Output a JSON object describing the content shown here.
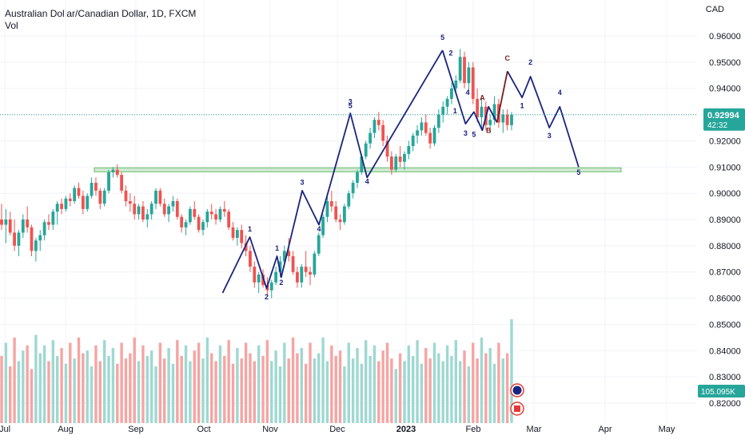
{
  "header": {
    "title": "Australian Dollar/Canadian Dollar, 1D, FXCM",
    "volume_label": "Vol",
    "currency": "CAD"
  },
  "price_axis": {
    "ticks": [
      "0.96000",
      "0.95000",
      "0.94000",
      "0.93000",
      "0.92000",
      "0.91000",
      "0.90000",
      "0.89000",
      "0.88000",
      "0.87000",
      "0.86000",
      "0.85000",
      "0.84000",
      "0.83000",
      "0.82000"
    ],
    "tick_values": [
      0.96,
      0.95,
      0.94,
      0.93,
      0.92,
      0.91,
      0.9,
      0.89,
      0.88,
      0.87,
      0.86,
      0.85,
      0.84,
      0.83,
      0.82
    ],
    "current_price": "0.92994",
    "current_price_value": 0.92994,
    "countdown": "42:32",
    "volume_badge": "105.095K"
  },
  "time_axis": {
    "labels": [
      "Jul",
      "Aug",
      "Sep",
      "Oct",
      "Nov",
      "Dec",
      "2023",
      "Feb",
      "Mar",
      "Apr",
      "May"
    ],
    "bold_label": "2023"
  },
  "colors": {
    "bull": "#26a69a",
    "bear": "#ef5350",
    "vol_bull": "#9fd8d1",
    "vol_bear": "#f5a5a3",
    "wave": "#1a237e",
    "projection": "#7b1c1c",
    "zone_fill": "#c8e6c9",
    "zone_stroke": "#66bb6a",
    "price_badge": "#26a69a",
    "last_price_line": "#26a69a"
  },
  "chart_data": {
    "type": "candlestick",
    "symbol": "Australian Dollar/Canadian Dollar",
    "interval": "1D",
    "ylim": [
      0.815,
      0.9655
    ],
    "support_zone": [
      0.9082,
      0.9097
    ],
    "wave_path": [
      [
        "2022-10-13",
        0.862
      ],
      [
        "2022-10-26",
        0.8833
      ],
      [
        "2022-11-03",
        0.8638
      ],
      [
        "2022-11-08",
        0.876
      ],
      [
        "2022-11-10",
        0.868
      ],
      [
        "2022-11-20",
        0.901
      ],
      [
        "2022-11-28",
        0.888
      ],
      [
        "2022-12-13",
        0.9305
      ],
      [
        "2022-12-21",
        0.906
      ],
      [
        "2023-01-26",
        0.9545
      ]
    ],
    "correction_path": [
      [
        "2023-01-26",
        0.9545
      ],
      [
        "2023-02-06",
        0.9265
      ],
      [
        "2023-02-10",
        0.931
      ],
      [
        "2023-02-14",
        0.924
      ],
      [
        "2023-02-17",
        0.933
      ],
      [
        "2023-02-21",
        0.927
      ]
    ],
    "projection_path": [
      [
        "2023-02-21",
        0.927
      ],
      [
        "2023-02-26",
        0.9465
      ]
    ],
    "forecast_path": [
      [
        "2023-02-26",
        0.9465
      ],
      [
        "2023-03-05",
        0.9365
      ],
      [
        "2023-03-09",
        0.9445
      ],
      [
        "2023-03-18",
        0.925
      ],
      [
        "2023-03-23",
        0.933
      ],
      [
        "2023-04-01",
        0.91
      ]
    ],
    "wave_labels": [
      {
        "text": "1",
        "date": "2022-10-26",
        "price": 0.8855
      },
      {
        "text": "2",
        "date": "2022-11-03",
        "price": 0.8595
      },
      {
        "text": "1",
        "date": "2022-11-08",
        "price": 0.8782
      },
      {
        "text": "2",
        "date": "2022-11-10",
        "price": 0.865
      },
      {
        "text": "3",
        "date": "2022-11-20",
        "price": 0.9032
      },
      {
        "text": "4",
        "date": "2022-11-28",
        "price": 0.8855
      },
      {
        "text": "3",
        "date": "2022-12-13",
        "price": 0.934
      },
      {
        "text": "5",
        "date": "2022-12-13",
        "price": 0.9325
      },
      {
        "text": "4",
        "date": "2022-12-21",
        "price": 0.9035
      },
      {
        "text": "5",
        "date": "2023-01-26",
        "price": 0.9585
      },
      {
        "text": "2",
        "date": "2023-01-30",
        "price": 0.9525
      },
      {
        "text": "1",
        "date": "2023-02-01",
        "price": 0.9305
      },
      {
        "text": "4",
        "date": "2023-02-07",
        "price": 0.9375
      },
      {
        "text": "3",
        "date": "2023-02-06",
        "price": 0.922
      },
      {
        "text": "5",
        "date": "2023-02-10",
        "price": 0.9215
      },
      {
        "text": "A",
        "date": "2023-02-14",
        "price": 0.9355
      },
      {
        "text": "B",
        "date": "2023-02-17",
        "price": 0.923
      },
      {
        "text": "C",
        "date": "2023-02-26",
        "price": 0.9505
      },
      {
        "text": "2",
        "date": "2023-03-09",
        "price": 0.949
      },
      {
        "text": "1",
        "date": "2023-03-05",
        "price": 0.9325
      },
      {
        "text": "4",
        "date": "2023-03-23",
        "price": 0.9375
      },
      {
        "text": "3",
        "date": "2023-03-18",
        "price": 0.921
      },
      {
        "text": "5",
        "date": "2023-04-01",
        "price": 0.907
      }
    ],
    "candles_ohlc": [
      [
        0.89,
        0.896,
        0.886,
        0.888
      ],
      [
        0.888,
        0.894,
        0.881,
        0.89
      ],
      [
        0.89,
        0.893,
        0.884,
        0.885
      ],
      [
        0.885,
        0.89,
        0.878,
        0.88
      ],
      [
        0.88,
        0.886,
        0.876,
        0.885
      ],
      [
        0.885,
        0.892,
        0.883,
        0.89
      ],
      [
        0.89,
        0.895,
        0.885,
        0.887
      ],
      [
        0.887,
        0.888,
        0.876,
        0.878
      ],
      [
        0.878,
        0.883,
        0.874,
        0.882
      ],
      [
        0.882,
        0.886,
        0.878,
        0.884
      ],
      [
        0.884,
        0.89,
        0.882,
        0.889
      ],
      [
        0.889,
        0.892,
        0.886,
        0.888
      ],
      [
        0.888,
        0.894,
        0.886,
        0.893
      ],
      [
        0.893,
        0.897,
        0.888,
        0.896
      ],
      [
        0.896,
        0.898,
        0.892,
        0.894
      ],
      [
        0.894,
        0.899,
        0.893,
        0.898
      ],
      [
        0.898,
        0.9,
        0.895,
        0.897
      ],
      [
        0.897,
        0.903,
        0.896,
        0.902
      ],
      [
        0.902,
        0.904,
        0.898,
        0.899
      ],
      [
        0.899,
        0.901,
        0.892,
        0.894
      ],
      [
        0.894,
        0.9,
        0.893,
        0.899
      ],
      [
        0.899,
        0.906,
        0.898,
        0.904
      ],
      [
        0.904,
        0.906,
        0.899,
        0.901
      ],
      [
        0.901,
        0.902,
        0.894,
        0.896
      ],
      [
        0.896,
        0.902,
        0.895,
        0.901
      ],
      [
        0.901,
        0.909,
        0.9,
        0.908
      ],
      [
        0.908,
        0.91,
        0.906,
        0.909
      ],
      [
        0.909,
        0.911,
        0.906,
        0.907
      ],
      [
        0.907,
        0.908,
        0.9,
        0.901
      ],
      [
        0.901,
        0.903,
        0.895,
        0.897
      ],
      [
        0.897,
        0.9,
        0.893,
        0.896
      ],
      [
        0.896,
        0.899,
        0.89,
        0.892
      ],
      [
        0.892,
        0.896,
        0.89,
        0.895
      ],
      [
        0.895,
        0.897,
        0.889,
        0.89
      ],
      [
        0.89,
        0.894,
        0.887,
        0.892
      ],
      [
        0.892,
        0.897,
        0.89,
        0.896
      ],
      [
        0.896,
        0.902,
        0.894,
        0.901
      ],
      [
        0.901,
        0.902,
        0.895,
        0.896
      ],
      [
        0.896,
        0.898,
        0.891,
        0.892
      ],
      [
        0.892,
        0.896,
        0.889,
        0.895
      ],
      [
        0.895,
        0.899,
        0.893,
        0.897
      ],
      [
        0.897,
        0.898,
        0.89,
        0.891
      ],
      [
        0.891,
        0.892,
        0.885,
        0.887
      ],
      [
        0.887,
        0.89,
        0.884,
        0.889
      ],
      [
        0.889,
        0.895,
        0.888,
        0.894
      ],
      [
        0.894,
        0.897,
        0.89,
        0.891
      ],
      [
        0.891,
        0.892,
        0.885,
        0.886
      ],
      [
        0.886,
        0.89,
        0.884,
        0.889
      ],
      [
        0.889,
        0.894,
        0.887,
        0.893
      ],
      [
        0.893,
        0.896,
        0.89,
        0.892
      ],
      [
        0.892,
        0.894,
        0.888,
        0.89
      ],
      [
        0.89,
        0.895,
        0.889,
        0.894
      ],
      [
        0.894,
        0.897,
        0.891,
        0.893
      ],
      [
        0.893,
        0.894,
        0.886,
        0.887
      ],
      [
        0.887,
        0.889,
        0.882,
        0.883
      ],
      [
        0.883,
        0.887,
        0.88,
        0.886
      ],
      [
        0.886,
        0.888,
        0.879,
        0.881
      ],
      [
        0.881,
        0.884,
        0.876,
        0.878
      ],
      [
        0.878,
        0.88,
        0.87,
        0.872
      ],
      [
        0.872,
        0.874,
        0.864,
        0.866
      ],
      [
        0.866,
        0.87,
        0.862,
        0.869
      ],
      [
        0.869,
        0.871,
        0.864,
        0.865
      ],
      [
        0.865,
        0.868,
        0.861,
        0.863
      ],
      [
        0.863,
        0.867,
        0.86,
        0.866
      ],
      [
        0.866,
        0.872,
        0.865,
        0.87
      ],
      [
        0.87,
        0.876,
        0.868,
        0.874
      ],
      [
        0.874,
        0.88,
        0.872,
        0.878
      ],
      [
        0.878,
        0.883,
        0.874,
        0.876
      ],
      [
        0.876,
        0.878,
        0.869,
        0.87
      ],
      [
        0.87,
        0.872,
        0.864,
        0.866
      ],
      [
        0.866,
        0.873,
        0.864,
        0.872
      ],
      [
        0.872,
        0.878,
        0.868,
        0.87
      ],
      [
        0.87,
        0.872,
        0.865,
        0.869
      ],
      [
        0.869,
        0.878,
        0.868,
        0.877
      ],
      [
        0.877,
        0.885,
        0.876,
        0.884
      ],
      [
        0.884,
        0.892,
        0.883,
        0.891
      ],
      [
        0.891,
        0.899,
        0.889,
        0.897
      ],
      [
        0.897,
        0.901,
        0.893,
        0.895
      ],
      [
        0.895,
        0.897,
        0.889,
        0.89
      ],
      [
        0.89,
        0.892,
        0.886,
        0.889
      ],
      [
        0.889,
        0.896,
        0.888,
        0.895
      ],
      [
        0.895,
        0.901,
        0.894,
        0.9
      ],
      [
        0.9,
        0.905,
        0.898,
        0.904
      ],
      [
        0.904,
        0.909,
        0.902,
        0.908
      ],
      [
        0.908,
        0.915,
        0.907,
        0.914
      ],
      [
        0.914,
        0.92,
        0.913,
        0.919
      ],
      [
        0.919,
        0.925,
        0.917,
        0.923
      ],
      [
        0.923,
        0.929,
        0.921,
        0.928
      ],
      [
        0.928,
        0.931,
        0.924,
        0.926
      ],
      [
        0.926,
        0.928,
        0.918,
        0.92
      ],
      [
        0.92,
        0.922,
        0.912,
        0.914
      ],
      [
        0.914,
        0.916,
        0.907,
        0.909
      ],
      [
        0.909,
        0.915,
        0.908,
        0.914
      ],
      [
        0.914,
        0.918,
        0.91,
        0.912
      ],
      [
        0.912,
        0.916,
        0.909,
        0.915
      ],
      [
        0.915,
        0.92,
        0.913,
        0.918
      ],
      [
        0.918,
        0.923,
        0.916,
        0.922
      ],
      [
        0.922,
        0.926,
        0.919,
        0.924
      ],
      [
        0.924,
        0.929,
        0.922,
        0.927
      ],
      [
        0.927,
        0.93,
        0.922,
        0.923
      ],
      [
        0.923,
        0.925,
        0.917,
        0.919
      ],
      [
        0.919,
        0.926,
        0.918,
        0.925
      ],
      [
        0.925,
        0.932,
        0.923,
        0.93
      ],
      [
        0.93,
        0.935,
        0.927,
        0.933
      ],
      [
        0.933,
        0.937,
        0.93,
        0.936
      ],
      [
        0.936,
        0.942,
        0.934,
        0.94
      ],
      [
        0.94,
        0.945,
        0.938,
        0.943
      ],
      [
        0.943,
        0.955,
        0.942,
        0.952
      ],
      [
        0.952,
        0.954,
        0.94,
        0.942
      ],
      [
        0.942,
        0.95,
        0.938,
        0.948
      ],
      [
        0.948,
        0.95,
        0.934,
        0.936
      ],
      [
        0.936,
        0.94,
        0.927,
        0.929
      ],
      [
        0.929,
        0.936,
        0.924,
        0.933
      ],
      [
        0.933,
        0.935,
        0.924,
        0.926
      ],
      [
        0.926,
        0.93,
        0.923,
        0.928
      ],
      [
        0.928,
        0.937,
        0.926,
        0.934
      ],
      [
        0.934,
        0.936,
        0.925,
        0.927
      ],
      [
        0.927,
        0.932,
        0.923,
        0.93
      ],
      [
        0.93,
        0.932,
        0.924,
        0.926
      ],
      [
        0.926,
        0.931,
        0.924,
        0.9299
      ]
    ],
    "volumes": [
      0.838,
      0.843,
      0.834,
      0.845,
      0.836,
      0.84,
      0.842,
      0.833,
      0.846,
      0.839,
      0.842,
      0.836,
      0.844,
      0.838,
      0.841,
      0.835,
      0.843,
      0.837,
      0.845,
      0.839,
      0.84,
      0.834,
      0.842,
      0.836,
      0.844,
      0.838,
      0.841,
      0.835,
      0.843,
      0.837,
      0.839,
      0.845,
      0.836,
      0.842,
      0.838,
      0.84,
      0.834,
      0.843,
      0.837,
      0.841,
      0.835,
      0.844,
      0.838,
      0.842,
      0.836,
      0.84,
      0.843,
      0.837,
      0.845,
      0.839,
      0.836,
      0.842,
      0.838,
      0.844,
      0.835,
      0.841,
      0.837,
      0.843,
      0.839,
      0.836,
      0.842,
      0.838,
      0.844,
      0.836,
      0.84,
      0.834,
      0.843,
      0.837,
      0.845,
      0.839,
      0.841,
      0.835,
      0.843,
      0.837,
      0.839,
      0.845,
      0.836,
      0.842,
      0.838,
      0.84,
      0.834,
      0.843,
      0.837,
      0.841,
      0.835,
      0.844,
      0.838,
      0.842,
      0.836,
      0.84,
      0.843,
      0.837,
      0.833,
      0.839,
      0.836,
      0.842,
      0.838,
      0.844,
      0.835,
      0.841,
      0.837,
      0.843,
      0.839,
      0.836,
      0.842,
      0.838,
      0.844,
      0.836,
      0.84,
      0.834,
      0.843,
      0.837,
      0.845,
      0.839,
      0.841,
      0.835,
      0.843,
      0.837,
      0.839,
      0.852
    ]
  }
}
